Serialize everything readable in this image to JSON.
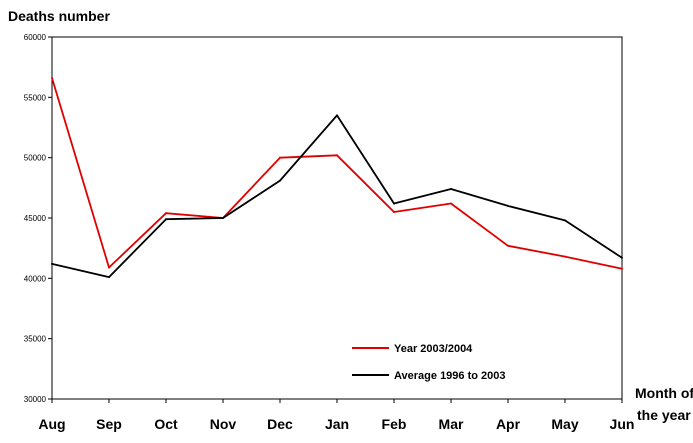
{
  "chart_data": {
    "type": "line",
    "ylabel": "Deaths number",
    "xlabel_line1": "Month of",
    "xlabel_line2": "the year",
    "categories": [
      "Aug",
      "Sep",
      "Oct",
      "Nov",
      "Dec",
      "Jan",
      "Feb",
      "Mar",
      "Apr",
      "May",
      "Jun"
    ],
    "ylim": [
      30000,
      60000
    ],
    "y_ticks": [
      30000,
      35000,
      40000,
      45000,
      50000,
      55000,
      60000
    ],
    "y_tick_labels": [
      "30000",
      "35000",
      "40000",
      "45000",
      "50000",
      "55000",
      "60000"
    ],
    "grid": false,
    "legend_position": "bottom-right inside plot",
    "series": [
      {
        "name": "Year 2003/2004",
        "color": "#e00000",
        "values": [
          56600,
          40900,
          45400,
          45000,
          50000,
          50200,
          45500,
          46200,
          42700,
          41800,
          40800
        ]
      },
      {
        "name": "Average 1996 to 2003",
        "color": "#000000",
        "values": [
          41200,
          40100,
          44900,
          45000,
          48100,
          53500,
          46200,
          47400,
          46000,
          44800,
          41700
        ]
      }
    ]
  }
}
